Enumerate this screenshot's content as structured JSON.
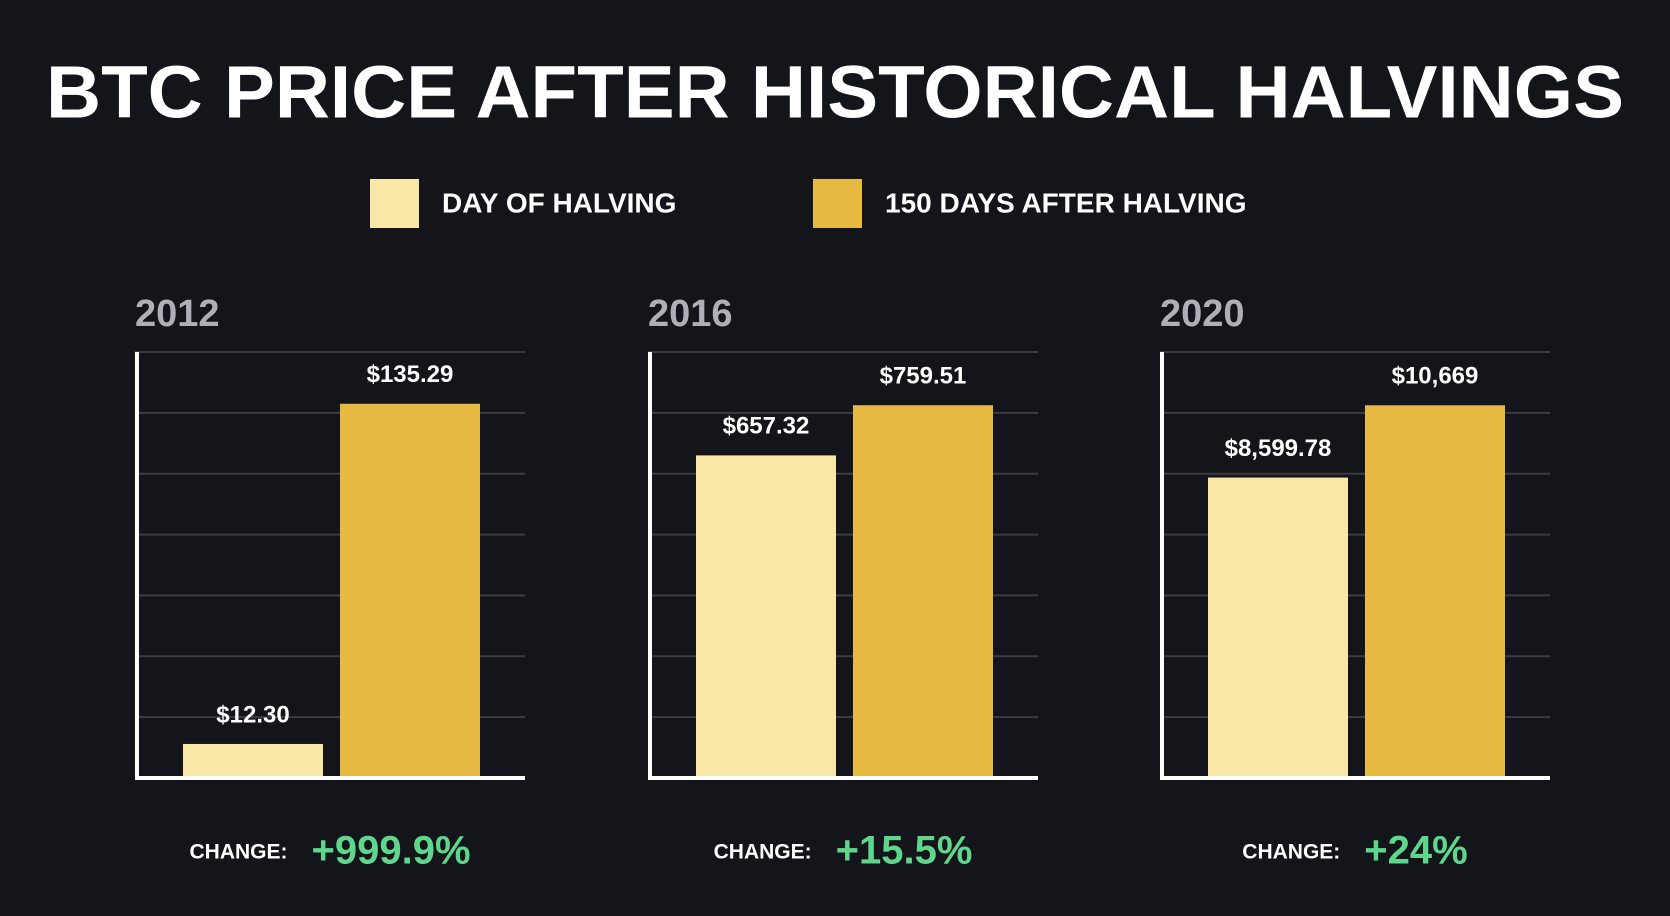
{
  "title": "BTC PRICE AFTER HISTORICAL HALVINGS",
  "legend": [
    {
      "name": "DAY OF HALVING",
      "color": "#f8e7a6"
    },
    {
      "name": "150 DAYS AFTER HALVING",
      "color": "#e6b941"
    }
  ],
  "chart_data": [
    {
      "type": "bar",
      "title": "2012",
      "series": [
        {
          "color": "#f8e7a6",
          "values": [
            12.3
          ],
          "value_labels": [
            "$12.30"
          ]
        },
        {
          "color": "#e6b941",
          "values": [
            135.29
          ],
          "value_labels": [
            "$135.29"
          ]
        }
      ],
      "ylim": [
        0,
        154
      ],
      "yticks": [
        0,
        22,
        44,
        66,
        88,
        110,
        132,
        154
      ],
      "grid": true,
      "change": {
        "label": "CHANGE:",
        "text": "+999.9%"
      }
    },
    {
      "type": "bar",
      "title": "2016",
      "series": [
        {
          "color": "#f8e7a6",
          "values": [
            657.32
          ],
          "value_labels": [
            "$657.32"
          ]
        },
        {
          "color": "#e6b941",
          "values": [
            759.51
          ],
          "value_labels": [
            "$759.51"
          ]
        }
      ],
      "ylim": [
        0,
        868
      ],
      "yticks": [
        0,
        124,
        248,
        372,
        496,
        620,
        744,
        868
      ],
      "grid": true,
      "change": {
        "label": "CHANGE:",
        "text": "+15.5%"
      }
    },
    {
      "type": "bar",
      "title": "2020",
      "series": [
        {
          "color": "#f8e7a6",
          "values": [
            8599.78
          ],
          "value_labels": [
            "$8,599.78"
          ]
        },
        {
          "color": "#e6b941",
          "values": [
            10669
          ],
          "value_labels": [
            "$10,669"
          ]
        }
      ],
      "ylim": [
        0,
        12194
      ],
      "yticks": [
        0,
        1742,
        3484,
        5226,
        6968,
        8710,
        10452,
        12194
      ],
      "grid": true,
      "change": {
        "label": "CHANGE:",
        "text": "+24%"
      }
    }
  ]
}
